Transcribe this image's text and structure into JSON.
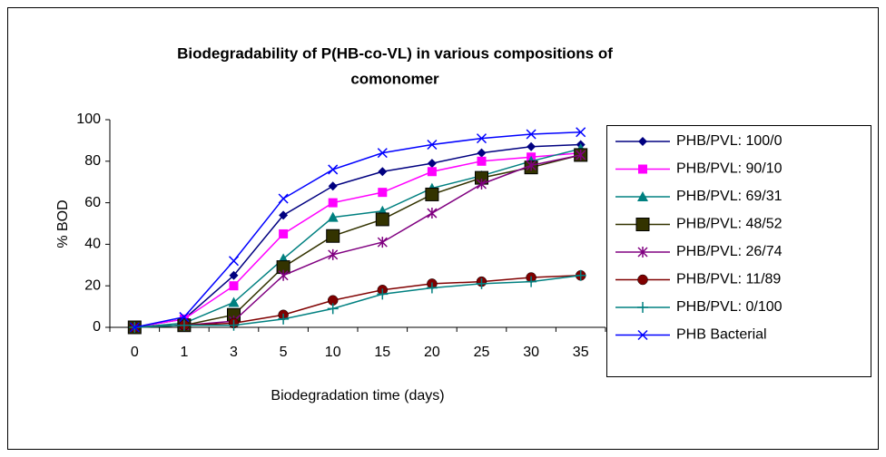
{
  "chart_data": {
    "type": "line",
    "title": [
      "Biodegradability of P(HB-co-VL) in various compositions of",
      "comonomer"
    ],
    "xlabel": "Biodegradation time (days)",
    "ylabel": "% BOD",
    "categories": [
      "0",
      "1",
      "3",
      "5",
      "10",
      "15",
      "20",
      "25",
      "30",
      "35"
    ],
    "ylim": [
      0,
      100
    ],
    "yticks": [
      0,
      20,
      40,
      60,
      80,
      100
    ],
    "grid": false,
    "legend": "right",
    "series": [
      {
        "name": "PHB/PVL: 100/0",
        "color": "#000080",
        "marker": "diamond",
        "values": [
          0,
          4,
          25,
          54,
          68,
          75,
          79,
          84,
          87,
          88
        ]
      },
      {
        "name": "PHB/PVL: 90/10",
        "color": "#ff00ff",
        "marker": "square",
        "values": [
          0,
          4,
          20,
          45,
          60,
          65,
          75,
          80,
          82,
          84
        ]
      },
      {
        "name": "PHB/PVL: 69/31",
        "color": "#008080",
        "marker": "triangle",
        "values": [
          0,
          2,
          12,
          33,
          53,
          56,
          67,
          73,
          80,
          86
        ]
      },
      {
        "name": "PHB/PVL: 48/52",
        "color": "#333300",
        "marker": "bigsquare",
        "values": [
          0,
          1,
          6,
          29,
          44,
          52,
          64,
          72,
          77,
          83
        ]
      },
      {
        "name": "PHB/PVL: 26/74",
        "color": "#800080",
        "marker": "star",
        "values": [
          0,
          1,
          3,
          25,
          35,
          41,
          55,
          69,
          78,
          83
        ]
      },
      {
        "name": "PHB/PVL: 11/89",
        "color": "#800000",
        "marker": "circle",
        "values": [
          0,
          1,
          2,
          6,
          13,
          18,
          21,
          22,
          24,
          25
        ]
      },
      {
        "name": "PHB/PVL: 0/100",
        "color": "#008080",
        "marker": "plus",
        "values": [
          0,
          1,
          1,
          4,
          9,
          16,
          19,
          21,
          22,
          25
        ]
      },
      {
        "name": "PHB Bacterial",
        "color": "#0000ff",
        "marker": "x",
        "values": [
          0,
          5,
          32,
          62,
          76,
          84,
          88,
          91,
          93,
          94
        ]
      }
    ]
  }
}
